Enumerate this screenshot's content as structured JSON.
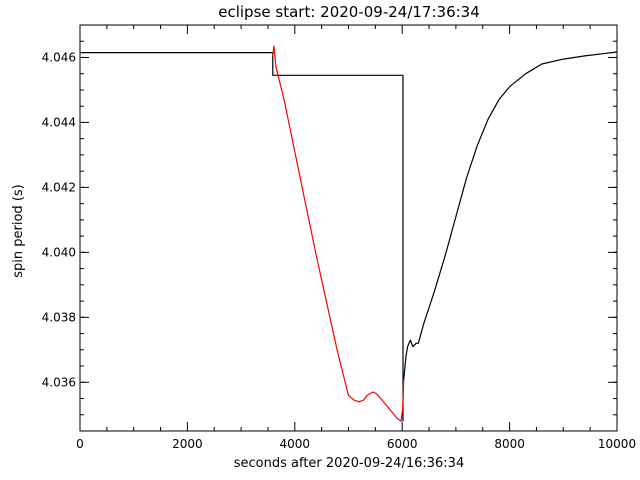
{
  "chart_data": {
    "type": "line",
    "title": "eclipse start: 2020-09-24/17:36:34",
    "xlabel": "seconds after 2020-09-24/16:36:34",
    "ylabel": "spin period (s)",
    "xlim": [
      0,
      10000
    ],
    "ylim": [
      4.0345,
      4.047
    ],
    "xticks": [
      0,
      2000,
      4000,
      6000,
      8000,
      10000
    ],
    "xtick_labels": [
      "0",
      "2000",
      "4000",
      "6000",
      "8000",
      "10000"
    ],
    "yticks": [
      4.036,
      4.038,
      4.04,
      4.042,
      4.044,
      4.046
    ],
    "ytick_labels": [
      "4.036",
      "4.038",
      "4.040",
      "4.042",
      "4.044",
      "4.046"
    ],
    "grid": false,
    "series": [
      {
        "color": "#000000",
        "x": [
          0,
          3590,
          3590,
          6015,
          6015
        ],
        "y": [
          4.04615,
          4.04615,
          4.04545,
          4.04545,
          4.0348
        ]
      },
      {
        "color": "#ff0000",
        "x": [
          3590,
          3610,
          3650,
          3800,
          4000,
          4200,
          4400,
          4600,
          4800,
          5000,
          5100,
          5200,
          5280,
          5350,
          5450,
          5520,
          5600,
          5700,
          5800,
          5900,
          5980,
          6010,
          6030
        ],
        "y": [
          4.04605,
          4.04635,
          4.0457,
          4.0447,
          4.0431,
          4.0415,
          4.0399,
          4.0384,
          4.0369,
          4.0356,
          4.03545,
          4.0354,
          4.03545,
          4.0356,
          4.0357,
          4.03565,
          4.0355,
          4.0353,
          4.0351,
          4.0349,
          4.0348,
          4.0352,
          4.0361
        ]
      },
      {
        "color": "#000000",
        "x": [
          6030,
          6070,
          6100,
          6150,
          6200,
          6260,
          6300,
          6400,
          6600,
          6800,
          7000,
          7200,
          7400,
          7600,
          7800,
          8000,
          8300,
          8600,
          9000,
          9400,
          9800,
          10000
        ],
        "y": [
          4.0361,
          4.0368,
          4.0371,
          4.0373,
          4.0371,
          4.0372,
          4.0372,
          4.0378,
          4.0388,
          4.0399,
          4.0411,
          4.0423,
          4.0433,
          4.0441,
          4.0447,
          4.0451,
          4.0455,
          4.0458,
          4.04595,
          4.04605,
          4.04613,
          4.04617
        ]
      }
    ]
  }
}
